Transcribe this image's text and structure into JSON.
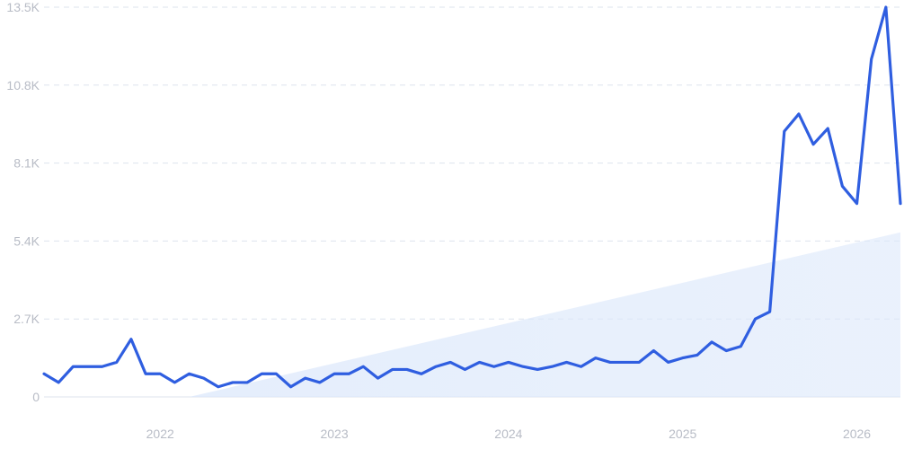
{
  "chart_data": {
    "type": "line",
    "title": "",
    "xlabel": "",
    "ylabel": "",
    "ylim": [
      0,
      13500
    ],
    "x_tick_labels": [
      "2022",
      "2023",
      "2024",
      "2025",
      "2026"
    ],
    "y_tick_labels": [
      "0",
      "2.7K",
      "5.4K",
      "8.1K",
      "10.8K",
      "13.5K"
    ],
    "y_ticks": [
      0,
      2700,
      5400,
      8100,
      10800,
      13500
    ],
    "grid": "horizontal-dashed",
    "colors": {
      "line": "#2f5ee0",
      "trend_fill": "#dce8fb",
      "grid": "#dde3ee",
      "axis_text": "#b8bcc6"
    },
    "series": [
      {
        "values": [
          800,
          500,
          1050,
          1050,
          1050,
          1200,
          2000,
          800,
          800,
          500,
          800,
          650,
          350,
          500,
          500,
          800,
          800,
          350,
          650,
          500,
          800,
          800,
          1050,
          650,
          950,
          950,
          800,
          1050,
          1200,
          950,
          1200,
          1050,
          1200,
          1050,
          950,
          1050,
          1200,
          1050,
          1350,
          1200,
          1200,
          1200,
          1600,
          1200,
          1350,
          1450,
          1900,
          1600,
          1750,
          2700,
          2950,
          9200,
          9800,
          8750,
          9300,
          7300,
          6700,
          11700,
          13500,
          6700
        ]
      }
    ],
    "trend": {
      "start_index": 10,
      "start_value": 0,
      "end_value": 5700
    }
  }
}
